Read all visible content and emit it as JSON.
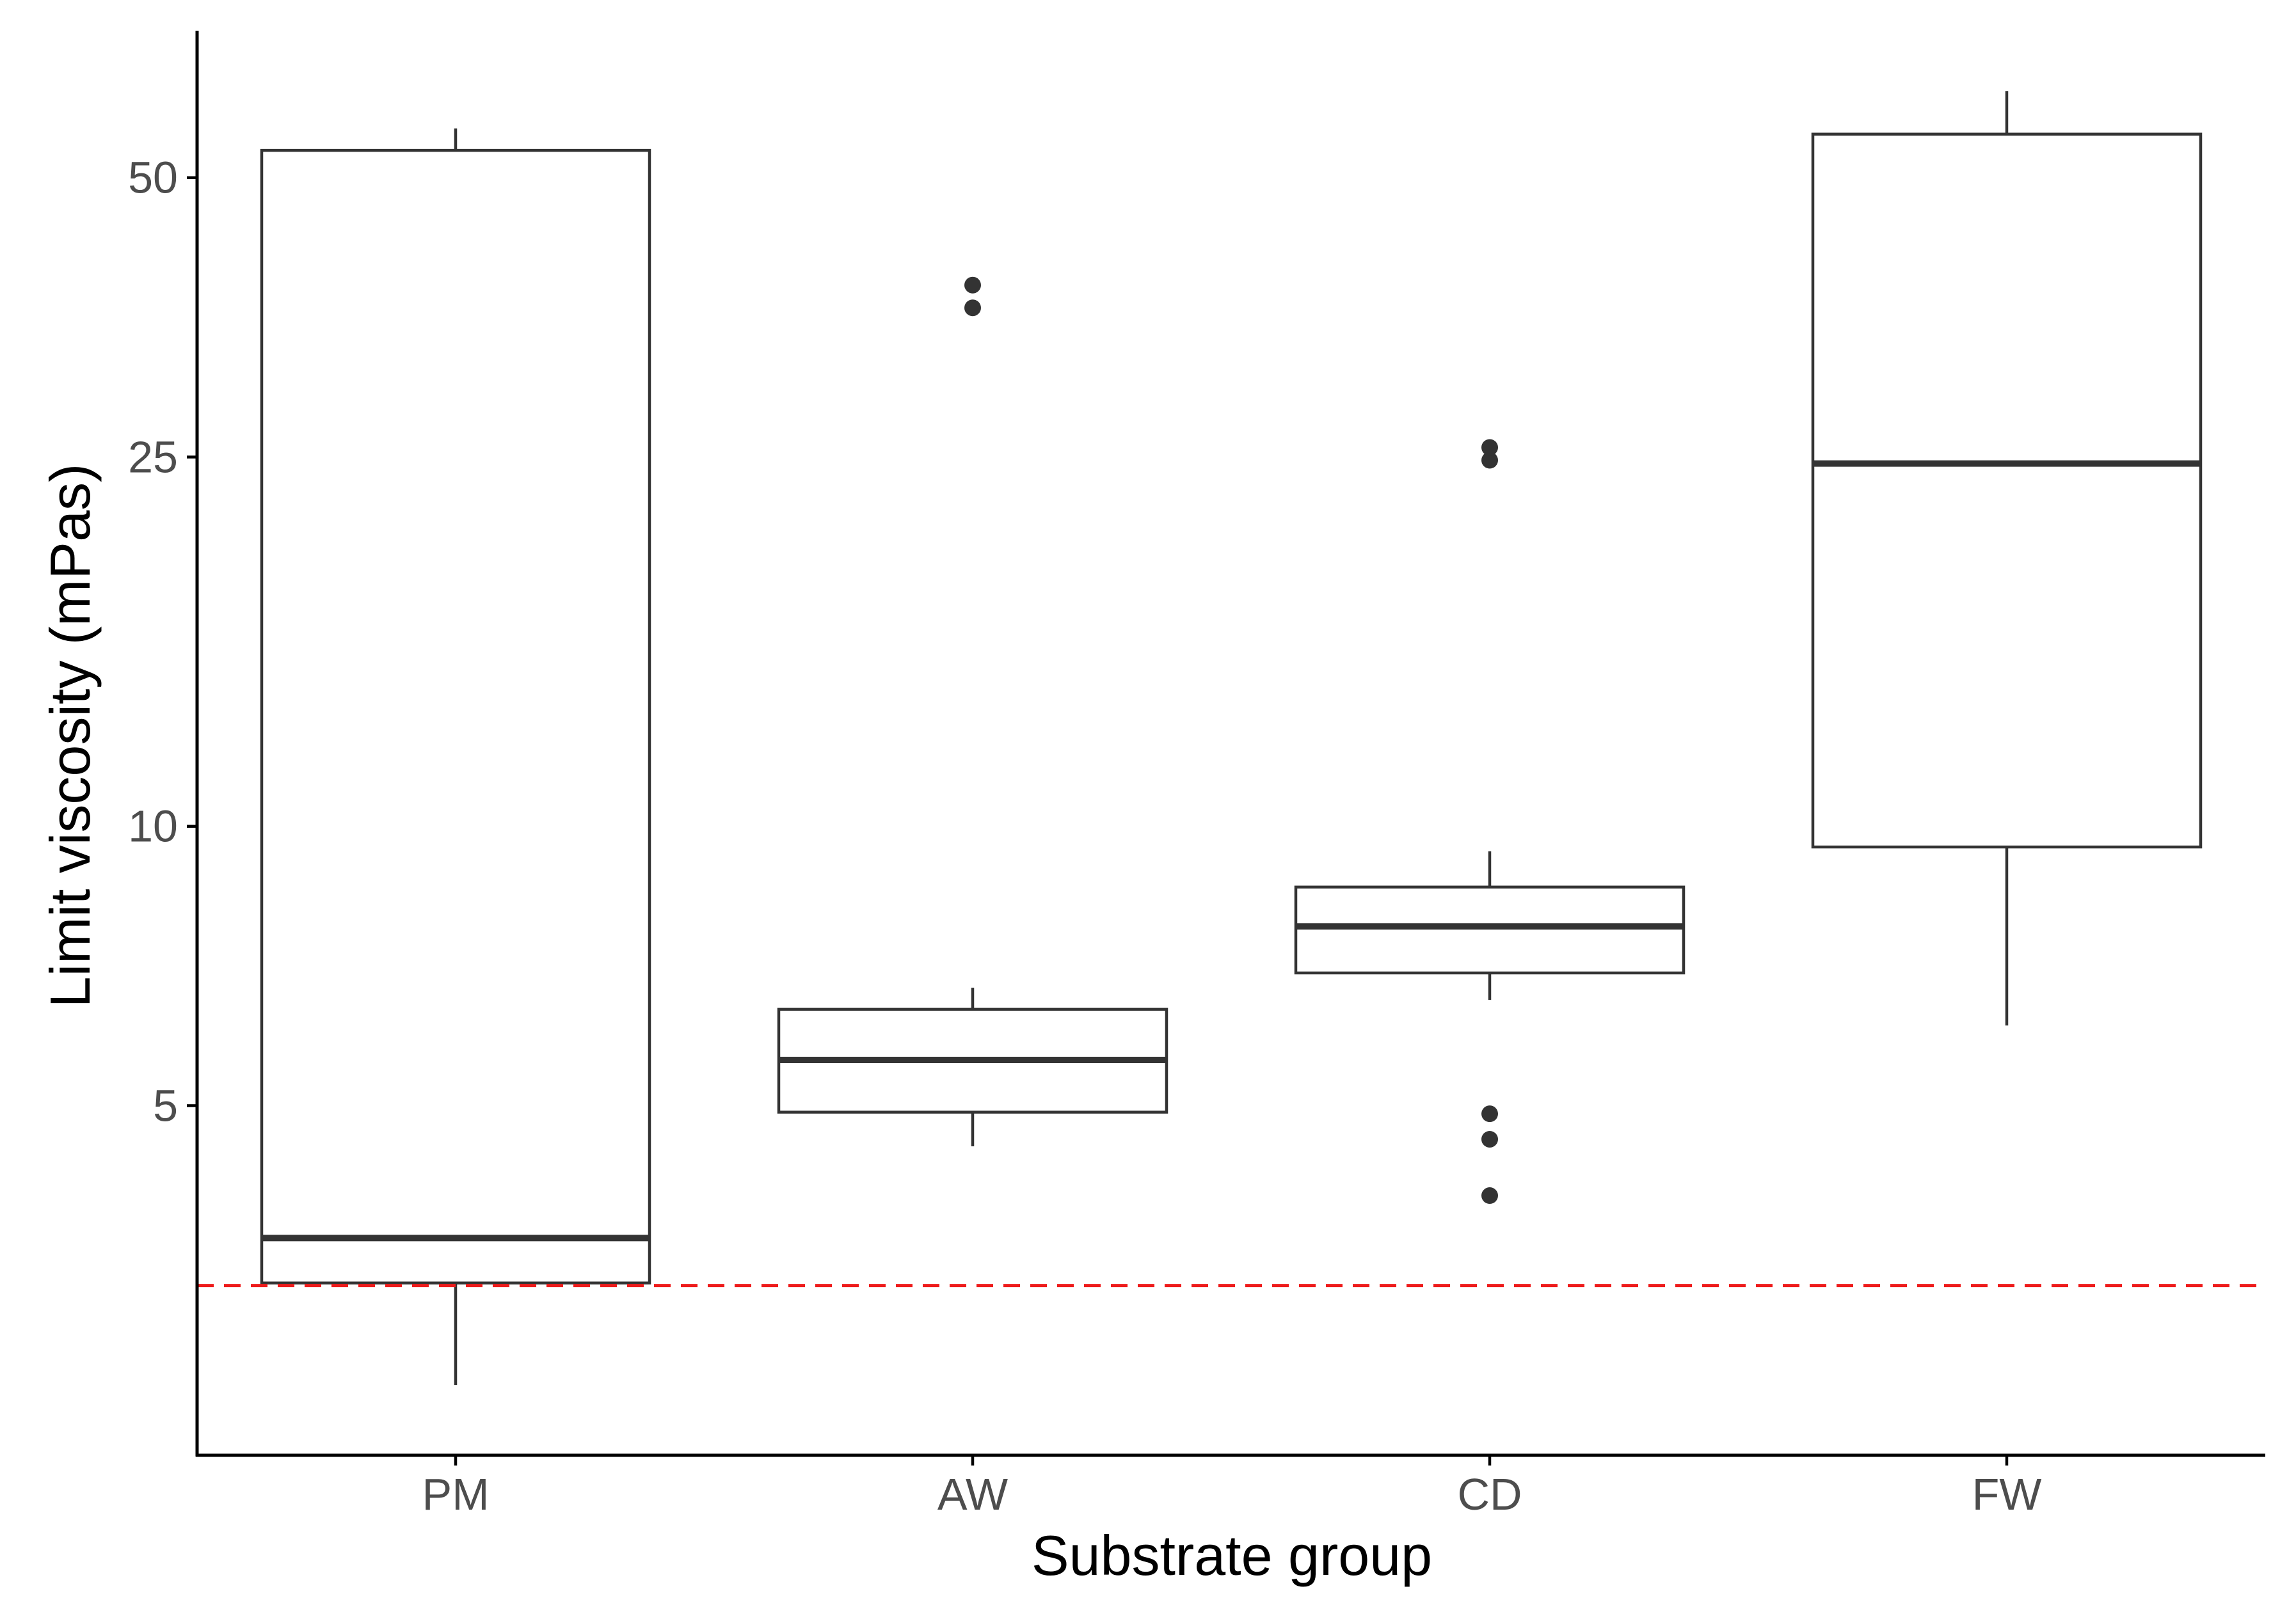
{
  "chart_data": {
    "type": "boxplot",
    "xlabel": "Substrate group",
    "ylabel": "Limit viscosity (mPas)",
    "y_scale": "log",
    "ylim": [
      2.1,
      72
    ],
    "y_ticks": [
      5,
      10,
      25,
      50
    ],
    "y_tick_labels": [
      "5",
      "10",
      "25",
      "50"
    ],
    "grid": false,
    "legend": "none",
    "categories": [
      "PM",
      "AW",
      "CD",
      "FW"
    ],
    "boxes": [
      {
        "category": "PM",
        "whisker_low": 2.5,
        "q1": 3.22,
        "median": 3.6,
        "q3": 53.5,
        "whisker_high": 56.5,
        "outliers": []
      },
      {
        "category": "AW",
        "whisker_low": 4.52,
        "q1": 4.92,
        "median": 5.6,
        "q3": 6.35,
        "whisker_high": 6.7,
        "outliers": [
          36.2,
          38.3
        ]
      },
      {
        "category": "CD",
        "whisker_low": 6.5,
        "q1": 6.95,
        "median": 7.8,
        "q3": 8.6,
        "whisker_high": 9.4,
        "outliers": [
          4.0,
          4.6,
          4.9,
          24.8,
          25.6
        ]
      },
      {
        "category": "FW",
        "whisker_low": 6.1,
        "q1": 9.5,
        "median": 24.6,
        "q3": 55.7,
        "whisker_high": 62.0,
        "outliers": []
      }
    ],
    "reference_line": {
      "value": 3.2,
      "style": "dashed",
      "color": "#ee1c1c"
    },
    "colors": {
      "box_fill": "#ffffff",
      "box_stroke": "#333333",
      "outlier": "#333333",
      "axis": "#000000",
      "tick_label": "#4d4d4d"
    }
  }
}
